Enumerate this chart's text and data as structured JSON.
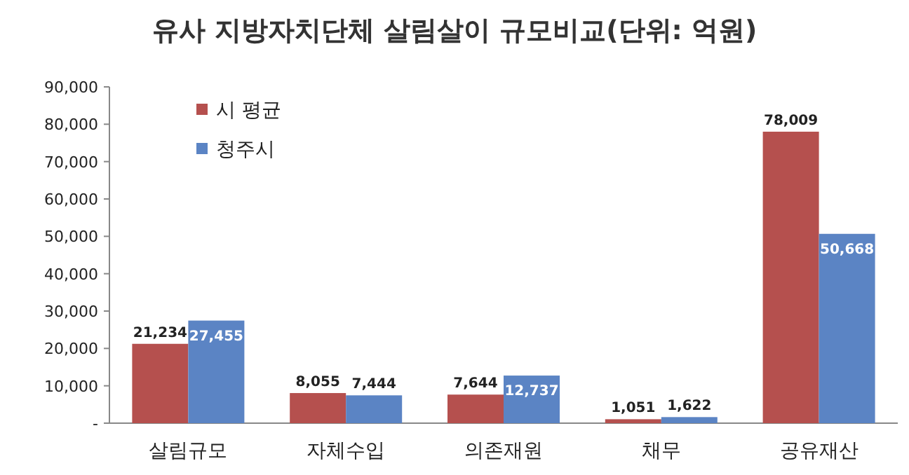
{
  "chart_data": {
    "type": "bar",
    "title": "유사 지방자치단체 살림살이 규모비교(단위: 억원)",
    "categories": [
      "살림규모",
      "자체수입",
      "의존재원",
      "채무",
      "공유재산"
    ],
    "series": [
      {
        "name": "시 평균",
        "color": "#b5504e",
        "values": [
          21234,
          8055,
          7644,
          1051,
          78009
        ],
        "value_labels": [
          "21,234",
          "8,055",
          "7,644",
          "1,051",
          "78,009"
        ]
      },
      {
        "name": "청주시",
        "color": "#5b84c4",
        "values": [
          27455,
          7444,
          12737,
          1622,
          50668
        ],
        "value_labels": [
          "27,455",
          "7,444",
          "12,737",
          "1,622",
          "50,668"
        ]
      }
    ],
    "ylim": [
      0,
      90000
    ],
    "yticks": [
      {
        "value": 0,
        "label": "-"
      },
      {
        "value": 10000,
        "label": "10,000"
      },
      {
        "value": 20000,
        "label": "20,000"
      },
      {
        "value": 30000,
        "label": "30,000"
      },
      {
        "value": 40000,
        "label": "40,000"
      },
      {
        "value": 50000,
        "label": "50,000"
      },
      {
        "value": 60000,
        "label": "60,000"
      },
      {
        "value": 70000,
        "label": "70,000"
      },
      {
        "value": 80000,
        "label": "80,000"
      },
      {
        "value": 90000,
        "label": "90,000"
      }
    ],
    "legend": "top left",
    "grid": false
  }
}
